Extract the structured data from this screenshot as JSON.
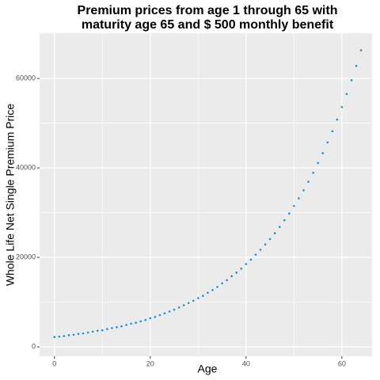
{
  "chart_data": {
    "type": "scatter",
    "title": [
      "Premium prices from age 1 through 65 with",
      "maturity age 65 and $ 500 monthly benefit"
    ],
    "x_label": "Age",
    "y_label": "Whole Life Net Single Premium Price",
    "x": [
      0,
      1,
      2,
      3,
      4,
      5,
      6,
      7,
      8,
      9,
      10,
      11,
      12,
      13,
      14,
      15,
      16,
      17,
      18,
      19,
      20,
      21,
      22,
      23,
      24,
      25,
      26,
      27,
      28,
      29,
      30,
      31,
      32,
      33,
      34,
      35,
      36,
      37,
      38,
      39,
      40,
      41,
      42,
      43,
      44,
      45,
      46,
      47,
      48,
      49,
      50,
      51,
      52,
      53,
      54,
      55,
      56,
      57,
      58,
      59,
      60,
      61,
      62,
      63,
      64
    ],
    "values": [
      2200,
      2300,
      2400,
      2600,
      2700,
      2900,
      3000,
      3200,
      3400,
      3600,
      3700,
      4000,
      4200,
      4400,
      4600,
      4900,
      5200,
      5400,
      5700,
      6000,
      6400,
      6700,
      7100,
      7500,
      7900,
      8300,
      8800,
      9300,
      9800,
      10300,
      10900,
      11400,
      12100,
      12700,
      13400,
      14200,
      14900,
      15800,
      16600,
      17500,
      18500,
      19500,
      20600,
      21700,
      22900,
      24100,
      25400,
      26800,
      28300,
      29800,
      31500,
      33200,
      35000,
      36900,
      38900,
      41100,
      43300,
      45700,
      48200,
      50800,
      53600,
      56500,
      59600,
      62800,
      66300
    ],
    "color": "#1f8fcf",
    "xlim": [
      -3.1,
      66.3
    ],
    "ylim": [
      -2100,
      70100
    ],
    "xticks": [
      0,
      20,
      40,
      60
    ],
    "yticks": [
      0,
      20000,
      40000,
      60000
    ],
    "x_minor": [
      10,
      30,
      50
    ],
    "y_minor": [
      10000,
      30000,
      50000
    ],
    "grid": true
  }
}
